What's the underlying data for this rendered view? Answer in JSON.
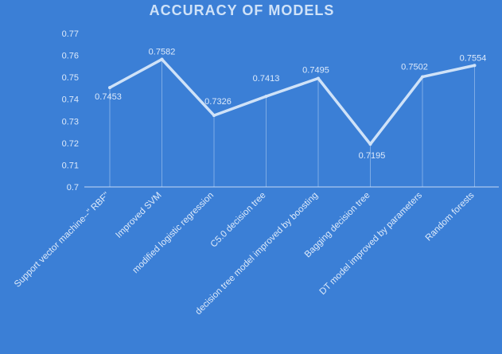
{
  "chart_data": {
    "type": "line",
    "title": "ACCURACY OF MODELS",
    "xlabel": "",
    "ylabel": "",
    "categories": [
      "Support vector machine--\" RBF\"",
      "Improved SVM",
      "modified logistic regression",
      "C5.0 decision tree",
      "decision tree model improved by boosting",
      "Bagging decision tree",
      "DT model improved by parameters",
      "Random forests"
    ],
    "values": [
      0.7453,
      0.7582,
      0.7326,
      0.7413,
      0.7495,
      0.7195,
      0.7502,
      0.7554
    ],
    "data_labels": [
      "0.7453",
      "0.7582",
      "0.7326",
      "0.7413",
      "0.7495",
      "0.7195",
      "0.7502",
      "0.7554"
    ],
    "ylim": [
      0.7,
      0.77
    ],
    "yticks": [
      "0.7",
      "0.71",
      "0.72",
      "0.73",
      "0.74",
      "0.75",
      "0.76",
      "0.77"
    ],
    "grid": false,
    "drop_lines": true,
    "colors": {
      "background": "#3b7fd6",
      "line": "#cfe2f8",
      "text": "#ddeafb",
      "title": "#cfe2f8",
      "axis": "#a9c8ef"
    }
  }
}
